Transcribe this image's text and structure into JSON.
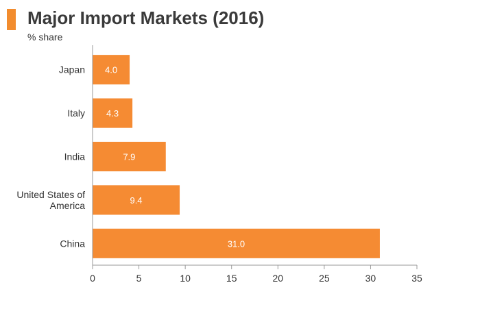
{
  "header": {
    "title": "Major Import Markets (2016)",
    "subtitle": "% share",
    "accent_color": "#f28c2e"
  },
  "chart_data": {
    "type": "bar",
    "orientation": "horizontal",
    "title": "Major Import Markets (2016)",
    "subtitle": "% share",
    "xlabel": "",
    "ylabel": "",
    "categories": [
      [
        "Japan"
      ],
      [
        "Italy"
      ],
      [
        "India"
      ],
      [
        "United States of",
        "America"
      ],
      [
        "China"
      ]
    ],
    "values": [
      4.0,
      4.3,
      7.9,
      9.4,
      31.0
    ],
    "value_labels": [
      "4.0",
      "4.3",
      "7.9",
      "9.4",
      "31.0"
    ],
    "xlim": [
      0,
      35
    ],
    "xticks": [
      "0",
      "5",
      "10",
      "15",
      "20",
      "25",
      "30",
      "35"
    ],
    "grid": false,
    "legend": "none",
    "bar_color": "#f58b33",
    "axis_color": "#9a9a9a"
  }
}
